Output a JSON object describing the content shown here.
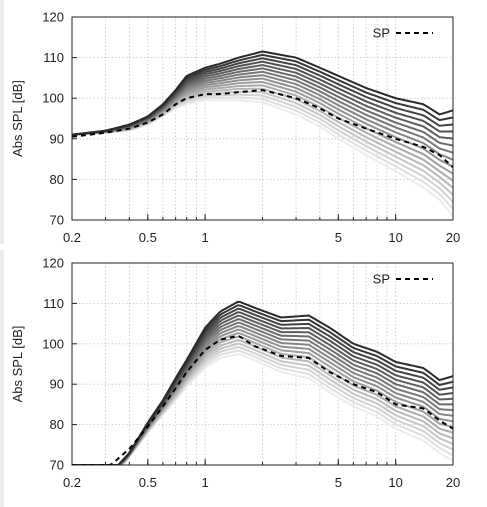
{
  "chart_data": [
    {
      "type": "line",
      "title": "",
      "xlabel": "",
      "ylabel": "Abs SPL [dB]",
      "xscale": "log",
      "xlim": [
        0.2,
        20
      ],
      "ylim": [
        70,
        120
      ],
      "xticks": [
        0.2,
        0.5,
        1,
        5,
        10,
        20
      ],
      "xtick_labels": [
        "0.2",
        "0.5",
        "1",
        "5",
        "10",
        "20"
      ],
      "yticks": [
        70,
        80,
        90,
        100,
        110,
        120
      ],
      "ytick_labels": [
        "70",
        "80",
        "90",
        "100",
        "110",
        "120"
      ],
      "grid": {
        "x_minor_log": true,
        "y": true,
        "style": "dotted"
      },
      "legend": {
        "position": "top-right",
        "entries": [
          {
            "label": "SP",
            "style": "dashed",
            "color": "#000000"
          }
        ]
      },
      "colors": {
        "darkest": "#2a2a2a",
        "lightest": "#ececec",
        "dashed": "#000000"
      },
      "series": [
        {
          "name": "SP",
          "style": "dashed",
          "x": [
            0.2,
            0.3,
            0.4,
            0.5,
            0.6,
            0.7,
            0.8,
            1.0,
            1.2,
            1.5,
            2.0,
            3.0,
            4.0,
            5.0,
            7.0,
            10.0,
            14.0,
            17.0,
            20.0
          ],
          "y": [
            90.5,
            91.5,
            92.5,
            94,
            96,
            98.5,
            100,
            101,
            101,
            101.5,
            102,
            100,
            97.5,
            95,
            92.5,
            90,
            88,
            86,
            83
          ]
        },
        {
          "name": "",
          "style": "solid",
          "x": [
            0.2,
            0.3,
            0.4,
            0.5,
            0.6,
            0.7,
            0.8,
            1.0,
            1.2,
            1.5,
            2.0,
            3.0,
            4.0,
            5.0,
            7.0,
            10.0,
            14.0,
            17.0,
            20.0
          ],
          "y": [
            91,
            92,
            93.5,
            95.5,
            98.5,
            102,
            105.5,
            107.5,
            108.5,
            110,
            111.5,
            110,
            107.5,
            105.5,
            102.5,
            100,
            98.5,
            96,
            97
          ]
        },
        {
          "name": "",
          "style": "solid",
          "x": [
            0.2,
            0.3,
            0.4,
            0.5,
            0.6,
            0.7,
            0.8,
            1.0,
            1.2,
            1.5,
            2.0,
            3.0,
            4.0,
            5.0,
            7.0,
            10.0,
            14.0,
            17.0,
            20.0
          ],
          "y": [
            91,
            91.5,
            92,
            93.5,
            95.5,
            97.5,
            98.5,
            99.5,
            99.5,
            99.5,
            99,
            96,
            93,
            90,
            86,
            82,
            78,
            75,
            71
          ]
        }
      ]
    },
    {
      "type": "line",
      "title": "",
      "xlabel": "",
      "ylabel": "Abs SPL [dB]",
      "xscale": "log",
      "xlim": [
        0.2,
        20
      ],
      "ylim": [
        70,
        120
      ],
      "xticks": [
        0.2,
        0.5,
        1,
        5,
        10,
        20
      ],
      "xtick_labels": [
        "0.2",
        "0.5",
        "1",
        "5",
        "10",
        "20"
      ],
      "yticks": [
        70,
        80,
        90,
        100,
        110,
        120
      ],
      "ytick_labels": [
        "70",
        "80",
        "90",
        "100",
        "110",
        "120"
      ],
      "grid": {
        "x_minor_log": true,
        "y": true,
        "style": "dotted"
      },
      "legend": {
        "position": "top-right",
        "entries": [
          {
            "label": "SP",
            "style": "dashed",
            "color": "#000000"
          }
        ]
      },
      "colors": {
        "darkest": "#2a2a2a",
        "lightest": "#ececec",
        "dashed": "#000000"
      },
      "series": [
        {
          "name": "SP",
          "style": "dashed",
          "x": [
            0.32,
            0.4,
            0.5,
            0.6,
            0.7,
            0.8,
            1.0,
            1.2,
            1.5,
            1.8,
            2.5,
            3.5,
            4.5,
            6.0,
            8.0,
            10.0,
            14.0,
            17.0,
            20.0
          ],
          "y": [
            70,
            74,
            79.5,
            84.5,
            89,
            93,
            98.5,
            101,
            102,
            99.5,
            97,
            96.5,
            93,
            90,
            88,
            85,
            84,
            81,
            79
          ]
        },
        {
          "name": "",
          "style": "solid",
          "x": [
            0.35,
            0.4,
            0.5,
            0.6,
            0.7,
            0.8,
            1.0,
            1.2,
            1.5,
            1.8,
            2.5,
            3.5,
            4.5,
            6.0,
            8.0,
            10.0,
            14.0,
            17.0,
            20.0
          ],
          "y": [
            70,
            73,
            80.5,
            86,
            91.5,
            96,
            104,
            108,
            110.5,
            109,
            106.5,
            107,
            104,
            100,
            98,
            95.5,
            94,
            91,
            92
          ]
        },
        {
          "name": "",
          "style": "solid",
          "x": [
            0.37,
            0.4,
            0.5,
            0.6,
            0.7,
            0.8,
            1.0,
            1.2,
            1.5,
            1.8,
            2.5,
            3.5,
            4.5,
            6.0,
            8.0,
            10.0,
            14.0,
            17.0,
            20.0
          ],
          "y": [
            70,
            72,
            78,
            82.5,
            86,
            89.5,
            94,
            96.5,
            97.5,
            96,
            93,
            91.5,
            88,
            84.5,
            82,
            79,
            76,
            73,
            71
          ]
        }
      ]
    }
  ]
}
